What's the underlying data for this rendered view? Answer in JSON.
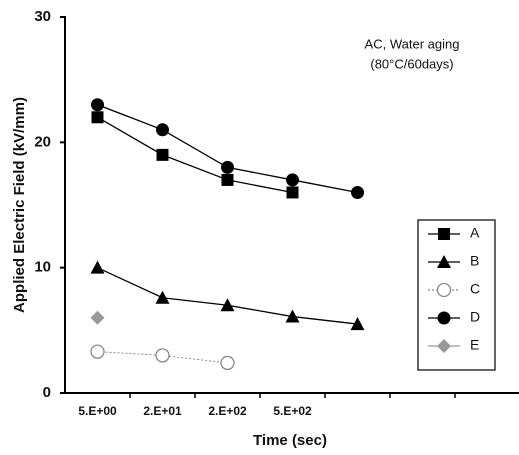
{
  "chart_data": {
    "type": "line",
    "x_label": "Time (sec)",
    "y_label": "Applied Electric Field (kV/mm)",
    "annotations": [
      "AC, Water aging",
      "(80°C/60days)"
    ],
    "categories": [
      "5.E+00",
      "2.E+01",
      "2.E+02",
      "5.E+02",
      null,
      null,
      null
    ],
    "ylim": [
      0,
      30
    ],
    "yticks": [
      0,
      10,
      20,
      30
    ],
    "legend": "right",
    "series": [
      {
        "name": "A",
        "color": "#000000",
        "marker": "square",
        "values": [
          22,
          19,
          17,
          16,
          null,
          null,
          null
        ]
      },
      {
        "name": "B",
        "color": "#000000",
        "marker": "triangle",
        "values": [
          10,
          7.6,
          7,
          6.1,
          5.5,
          null,
          null
        ]
      },
      {
        "name": "C",
        "color": "#888888",
        "marker": "open-circle",
        "values": [
          3.3,
          3.0,
          2.4,
          null,
          null,
          null,
          null
        ]
      },
      {
        "name": "D",
        "color": "#000000",
        "marker": "circle",
        "values": [
          23,
          21,
          18,
          17,
          16,
          null,
          null
        ]
      },
      {
        "name": "E",
        "color": "#999999",
        "marker": "diamond",
        "values": [
          6,
          null,
          null,
          null,
          null,
          null,
          null
        ]
      }
    ]
  }
}
